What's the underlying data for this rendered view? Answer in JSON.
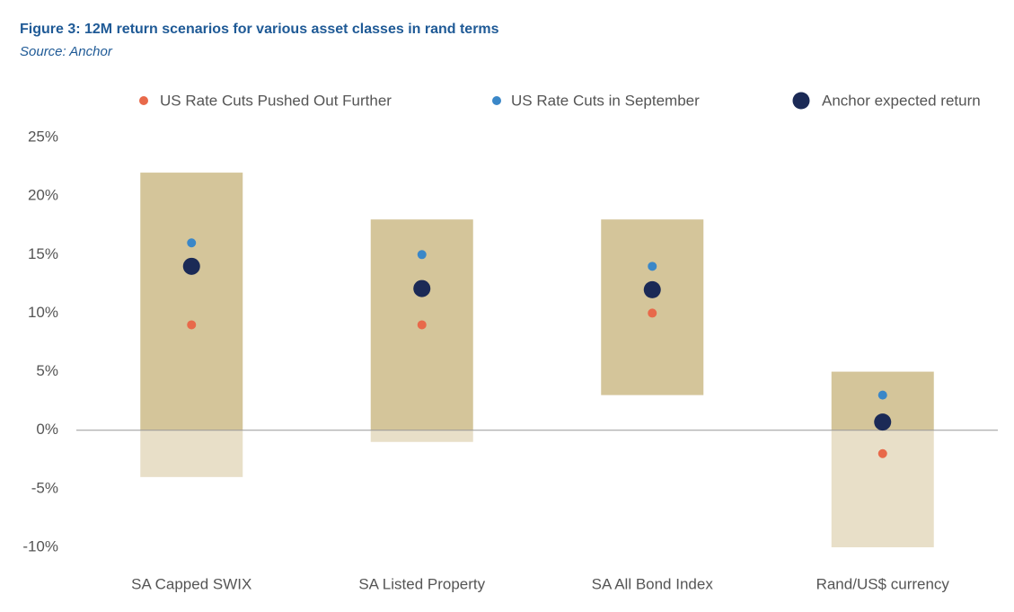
{
  "chart_data": {
    "type": "range-dot",
    "title": "Figure 3: 12M return scenarios for various asset classes in rand terms",
    "subtitle": "Source: Anchor",
    "categories": [
      "SA Capped SWIX",
      "SA Listed Property",
      "SA All Bond Index",
      "Rand/US$ currency"
    ],
    "ranges": {
      "low": [
        -4,
        -1,
        3,
        -10
      ],
      "high": [
        22,
        18,
        18,
        5
      ],
      "color_positive": "#d4c59a",
      "color_negative": "#e8dfc8"
    },
    "series": [
      {
        "name": "US Rate Cuts Pushed Out Further",
        "color": "#e8694a",
        "marker_size": 5,
        "values": [
          9,
          9,
          10,
          -2
        ]
      },
      {
        "name": "US Rate Cuts in September",
        "color": "#3a87c8",
        "marker_size": 5,
        "values": [
          16,
          15,
          14,
          3
        ]
      },
      {
        "name": "Anchor expected return",
        "color": "#1b2a56",
        "marker_size": 9.5,
        "values": [
          14,
          12.1,
          12,
          0.7
        ]
      }
    ],
    "ylim": [
      -10,
      25
    ],
    "yticks": [
      {
        "value": 25,
        "label": "25%"
      },
      {
        "value": 20,
        "label": "20%"
      },
      {
        "value": 15,
        "label": "15%"
      },
      {
        "value": 10,
        "label": "10%"
      },
      {
        "value": 5,
        "label": "5%"
      },
      {
        "value": 0,
        "label": "0%"
      },
      {
        "value": -5,
        "label": "-5%"
      },
      {
        "value": -10,
        "label": "-10%"
      }
    ],
    "grid": false,
    "legend": "top"
  }
}
